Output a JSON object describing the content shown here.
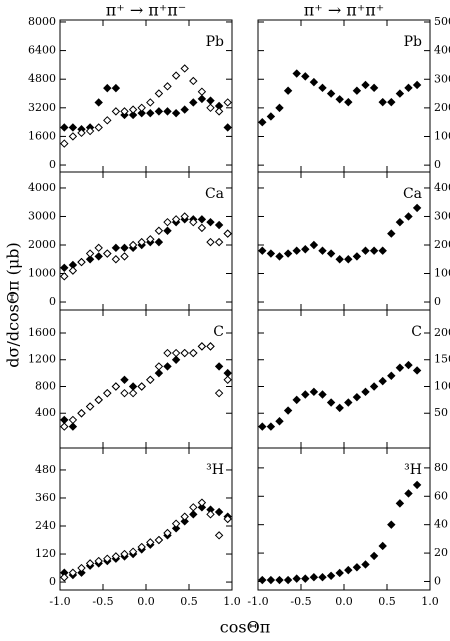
{
  "figure": {
    "column_titles": [
      "π⁺ → π⁺π⁻",
      "π⁺ → π⁺π⁺"
    ],
    "ylabel": "dσ/dcosΘπ (μb)",
    "xlabel": "cosΘπ"
  },
  "chart_data": [
    {
      "type": "scatter",
      "title": "Pb",
      "xlim": [
        -1,
        1
      ],
      "xticks": [
        -1,
        -0.5,
        0,
        0.5,
        1
      ],
      "ylim": [
        -390,
        8110
      ],
      "yticks": [
        0,
        1600,
        3200,
        4800,
        6400,
        8000
      ],
      "series": [
        {
          "color": "#000000",
          "filled": true,
          "x": [
            -0.95,
            -0.85,
            -0.75,
            -0.65,
            -0.55,
            -0.45,
            -0.35,
            -0.25,
            -0.15,
            -0.05,
            0.05,
            0.15,
            0.25,
            0.35,
            0.45,
            0.55,
            0.65,
            0.75,
            0.85,
            0.95
          ],
          "values": [
            2100,
            2100,
            2000,
            2100,
            3500,
            4300,
            4300,
            2800,
            2800,
            2900,
            2900,
            3000,
            3000,
            2900,
            3100,
            3500,
            3700,
            3600,
            3300,
            2100
          ]
        },
        {
          "color": "#000000",
          "filled": false,
          "x": [
            -0.95,
            -0.85,
            -0.75,
            -0.65,
            -0.55,
            -0.45,
            -0.35,
            -0.25,
            -0.15,
            -0.05,
            0.05,
            0.15,
            0.25,
            0.35,
            0.45,
            0.55,
            0.65,
            0.75,
            0.85,
            0.95
          ],
          "values": [
            1200,
            1600,
            1800,
            1900,
            2100,
            2500,
            3000,
            3000,
            3100,
            3200,
            3500,
            4000,
            4400,
            5000,
            5400,
            4700,
            4100,
            3200,
            3000,
            3500
          ]
        }
      ]
    },
    {
      "type": "scatter",
      "title": "Pb",
      "xlim": [
        -1,
        1
      ],
      "xticks": [
        -1,
        -0.5,
        0,
        0.5,
        1
      ],
      "ylim": [
        -24,
        507
      ],
      "yticks": [
        0,
        100,
        200,
        300,
        400,
        500
      ],
      "series": [
        {
          "color": "#000000",
          "filled": true,
          "x": [
            -0.95,
            -0.85,
            -0.75,
            -0.65,
            -0.55,
            -0.45,
            -0.35,
            -0.25,
            -0.15,
            -0.05,
            0.05,
            0.15,
            0.25,
            0.35,
            0.45,
            0.55,
            0.65,
            0.75,
            0.85
          ],
          "values": [
            150,
            170,
            200,
            260,
            320,
            310,
            290,
            270,
            250,
            230,
            220,
            260,
            280,
            270,
            220,
            220,
            250,
            270,
            280
          ]
        }
      ]
    },
    {
      "type": "scatter",
      "title": "Ca",
      "xlim": [
        -1,
        1
      ],
      "xticks": [
        -1,
        -0.5,
        0,
        0.5,
        1
      ],
      "ylim": [
        -280,
        4560
      ],
      "yticks": [
        0,
        1000,
        2000,
        3000,
        4000
      ],
      "series": [
        {
          "color": "#000000",
          "filled": true,
          "x": [
            -0.95,
            -0.85,
            -0.75,
            -0.65,
            -0.55,
            -0.45,
            -0.35,
            -0.25,
            -0.15,
            -0.05,
            0.05,
            0.15,
            0.25,
            0.35,
            0.45,
            0.55,
            0.65,
            0.75,
            0.85,
            0.95
          ],
          "values": [
            1200,
            1300,
            1400,
            1500,
            1600,
            1700,
            1900,
            1900,
            1900,
            2000,
            2100,
            2100,
            2500,
            2800,
            2900,
            2900,
            2900,
            2800,
            2700,
            2400
          ]
        },
        {
          "color": "#000000",
          "filled": false,
          "x": [
            -0.95,
            -0.85,
            -0.75,
            -0.65,
            -0.55,
            -0.45,
            -0.35,
            -0.25,
            -0.15,
            -0.05,
            0.05,
            0.15,
            0.25,
            0.35,
            0.45,
            0.55,
            0.65,
            0.75,
            0.85,
            0.95
          ],
          "values": [
            900,
            1100,
            1400,
            1700,
            1900,
            1700,
            1500,
            1600,
            2000,
            2100,
            2200,
            2500,
            2800,
            2900,
            3000,
            2800,
            2600,
            2100,
            2100,
            2400
          ]
        }
      ]
    },
    {
      "type": "scatter",
      "title": "Ca",
      "xlim": [
        -1,
        1
      ],
      "xticks": [
        -1,
        -0.5,
        0,
        0.5,
        1
      ],
      "ylim": [
        -28,
        456
      ],
      "yticks": [
        0,
        100,
        200,
        300,
        400
      ],
      "series": [
        {
          "color": "#000000",
          "filled": true,
          "x": [
            -0.95,
            -0.85,
            -0.75,
            -0.65,
            -0.55,
            -0.45,
            -0.35,
            -0.25,
            -0.15,
            -0.05,
            0.05,
            0.15,
            0.25,
            0.35,
            0.45,
            0.55,
            0.65,
            0.75,
            0.85
          ],
          "values": [
            180,
            170,
            160,
            170,
            180,
            185,
            200,
            180,
            170,
            150,
            150,
            160,
            180,
            180,
            180,
            240,
            280,
            300,
            330
          ]
        }
      ]
    },
    {
      "type": "scatter",
      "title": "C",
      "xlim": [
        -1,
        1
      ],
      "xticks": [
        -1,
        -0.5,
        0,
        0.5,
        1
      ],
      "ylim": [
        -120,
        1944
      ],
      "yticks": [
        400,
        800,
        1200,
        1600
      ],
      "series": [
        {
          "color": "#000000",
          "filled": true,
          "x": [
            -0.95,
            -0.85,
            -0.75,
            -0.65,
            -0.55,
            -0.45,
            -0.35,
            -0.25,
            -0.15,
            -0.05,
            0.05,
            0.15,
            0.25,
            0.35,
            0.45,
            0.55,
            0.65,
            0.75,
            0.85,
            0.95
          ],
          "values": [
            300,
            200,
            400,
            500,
            600,
            700,
            800,
            900,
            800,
            800,
            900,
            1000,
            1100,
            1200,
            1300,
            1300,
            1400,
            1400,
            1100,
            1000
          ]
        },
        {
          "color": "#000000",
          "filled": false,
          "x": [
            -0.95,
            -0.85,
            -0.75,
            -0.65,
            -0.55,
            -0.45,
            -0.35,
            -0.25,
            -0.15,
            -0.05,
            0.05,
            0.15,
            0.25,
            0.35,
            0.45,
            0.55,
            0.65,
            0.75,
            0.85,
            0.95
          ],
          "values": [
            200,
            300,
            400,
            500,
            600,
            700,
            800,
            700,
            700,
            800,
            900,
            1100,
            1300,
            1300,
            1300,
            1300,
            1400,
            1400,
            700,
            900
          ]
        }
      ]
    },
    {
      "type": "scatter",
      "title": "C",
      "xlim": [
        -1,
        1
      ],
      "xticks": [
        -1,
        -0.5,
        0,
        0.5,
        1
      ],
      "ylim": [
        -15,
        243
      ],
      "yticks": [
        50,
        100,
        150,
        200
      ],
      "series": [
        {
          "color": "#000000",
          "filled": true,
          "x": [
            -0.95,
            -0.85,
            -0.75,
            -0.65,
            -0.55,
            -0.45,
            -0.35,
            -0.25,
            -0.15,
            -0.05,
            0.05,
            0.15,
            0.25,
            0.35,
            0.45,
            0.55,
            0.65,
            0.75,
            0.85
          ],
          "values": [
            25,
            25,
            35,
            55,
            75,
            85,
            90,
            85,
            70,
            60,
            70,
            80,
            90,
            100,
            110,
            120,
            135,
            140,
            130
          ]
        }
      ]
    },
    {
      "type": "scatter",
      "title": "³H",
      "xlim": [
        -1,
        1
      ],
      "xticks": [
        {
          "value": -1,
          "label": "-1.0"
        },
        {
          "value": -0.5,
          "label": "-0.5"
        },
        {
          "value": 0,
          "label": "0.0"
        },
        {
          "value": 0.5,
          "label": "0.5"
        },
        {
          "value": 1,
          "label": "1.0"
        }
      ],
      "ylim": [
        -34,
        574
      ],
      "yticks": [
        0,
        120,
        240,
        360,
        480
      ],
      "series": [
        {
          "color": "#000000",
          "filled": true,
          "x": [
            -0.95,
            -0.85,
            -0.75,
            -0.65,
            -0.55,
            -0.45,
            -0.35,
            -0.25,
            -0.15,
            -0.05,
            0.05,
            0.15,
            0.25,
            0.35,
            0.45,
            0.55,
            0.65,
            0.75,
            0.85,
            0.95
          ],
          "values": [
            40,
            30,
            40,
            70,
            80,
            90,
            100,
            110,
            120,
            140,
            160,
            180,
            200,
            230,
            260,
            290,
            320,
            310,
            300,
            280
          ]
        },
        {
          "color": "#000000",
          "filled": false,
          "x": [
            -0.95,
            -0.85,
            -0.75,
            -0.65,
            -0.55,
            -0.45,
            -0.35,
            -0.25,
            -0.15,
            -0.05,
            0.05,
            0.15,
            0.25,
            0.35,
            0.45,
            0.55,
            0.65,
            0.75,
            0.85,
            0.95
          ],
          "values": [
            20,
            40,
            60,
            80,
            90,
            100,
            110,
            120,
            130,
            150,
            170,
            180,
            210,
            250,
            280,
            320,
            340,
            290,
            200,
            270
          ]
        }
      ]
    },
    {
      "type": "scatter",
      "title": "³H",
      "xlim": [
        -1,
        1
      ],
      "xticks": [
        {
          "value": -1,
          "label": "-1.0"
        },
        {
          "value": -0.5,
          "label": "-0.5"
        },
        {
          "value": 0,
          "label": "0.0"
        },
        {
          "value": 0.5,
          "label": "0.5"
        },
        {
          "value": 1,
          "label": "1.0"
        }
      ],
      "ylim": [
        -6,
        94
      ],
      "yticks": [
        0,
        20,
        40,
        60,
        80
      ],
      "series": [
        {
          "color": "#000000",
          "filled": true,
          "x": [
            -0.95,
            -0.85,
            -0.75,
            -0.65,
            -0.55,
            -0.45,
            -0.35,
            -0.25,
            -0.15,
            -0.05,
            0.05,
            0.15,
            0.25,
            0.35,
            0.45,
            0.55,
            0.65,
            0.75,
            0.85
          ],
          "values": [
            1,
            1,
            1,
            1,
            2,
            2,
            3,
            3,
            4,
            6,
            8,
            10,
            12,
            18,
            25,
            40,
            55,
            62,
            68
          ]
        }
      ]
    }
  ]
}
